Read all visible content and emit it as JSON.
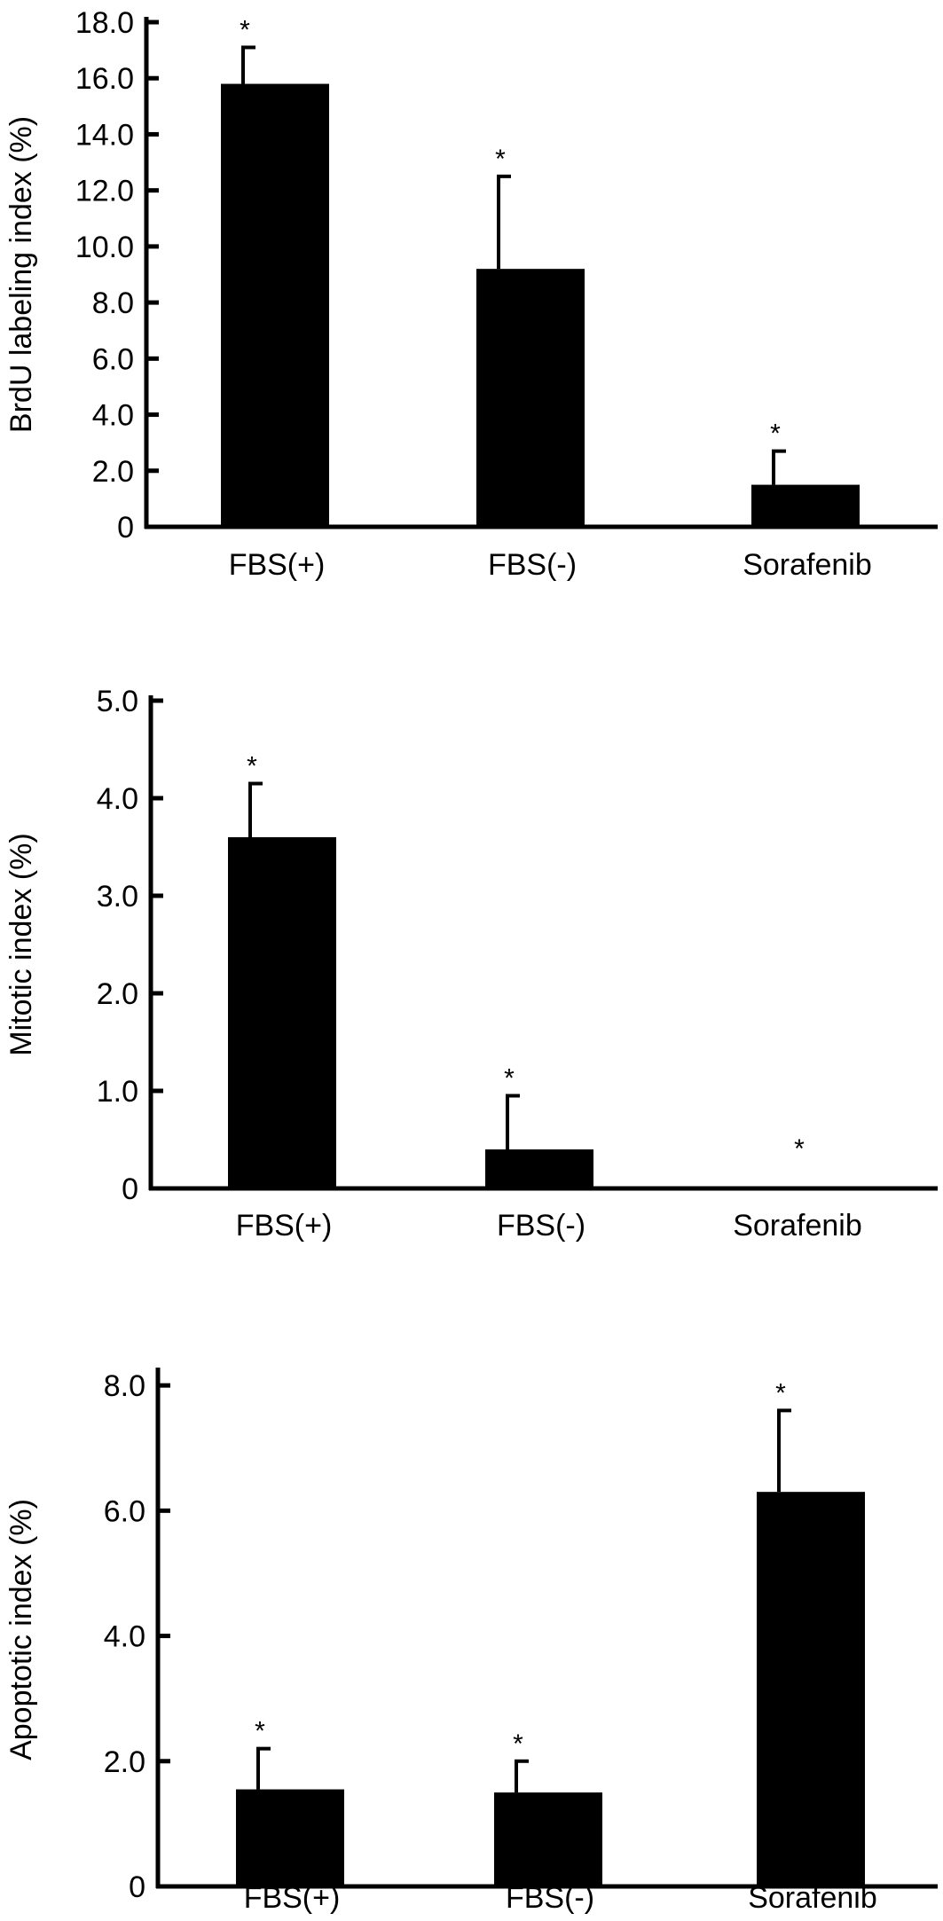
{
  "chart_data": [
    {
      "type": "bar",
      "ylabel": "BrdU labeling index (%)",
      "categories": [
        "FBS(+)",
        "FBS(-)",
        "Sorafenib"
      ],
      "values": [
        15.8,
        9.2,
        1.5
      ],
      "errors": [
        1.3,
        3.3,
        1.2
      ],
      "significance": [
        "*",
        "*",
        "*"
      ],
      "yticks": [
        {
          "value": 0,
          "label": "0"
        },
        {
          "value": 2,
          "label": "2.0"
        },
        {
          "value": 4,
          "label": "4.0"
        },
        {
          "value": 6,
          "label": "6.0"
        },
        {
          "value": 8,
          "label": "8.0"
        },
        {
          "value": 10,
          "label": "10.0"
        },
        {
          "value": 12,
          "label": "12.0"
        },
        {
          "value": 14,
          "label": "14.0"
        },
        {
          "value": 16,
          "label": "16.0"
        },
        {
          "value": 18,
          "label": "18.0"
        }
      ],
      "ylim": [
        0,
        18
      ],
      "grid": false,
      "bar_color": "#000000"
    },
    {
      "type": "bar",
      "ylabel": "Mitotic index (%)",
      "categories": [
        "FBS(+)",
        "FBS(-)",
        "Sorafenib"
      ],
      "values": [
        3.6,
        0.4,
        0
      ],
      "errors": [
        0.55,
        0.55,
        0
      ],
      "significance": [
        "*",
        "*",
        "*"
      ],
      "yticks": [
        {
          "value": 0,
          "label": "0"
        },
        {
          "value": 1,
          "label": "1.0"
        },
        {
          "value": 2,
          "label": "2.0"
        },
        {
          "value": 3,
          "label": "3.0"
        },
        {
          "value": 4,
          "label": "4.0"
        },
        {
          "value": 5,
          "label": "5.0"
        }
      ],
      "ylim": [
        0,
        5
      ],
      "grid": false,
      "bar_color": "#000000"
    },
    {
      "type": "bar",
      "ylabel": "Apoptotic index (%)",
      "categories": [
        "FBS(+)",
        "FBS(-)",
        "Sorafenib"
      ],
      "values": [
        1.55,
        1.5,
        6.3
      ],
      "errors": [
        0.65,
        0.5,
        1.3
      ],
      "significance": [
        "*",
        "*",
        "*"
      ],
      "yticks": [
        {
          "value": 0,
          "label": "0"
        },
        {
          "value": 2,
          "label": "2.0"
        },
        {
          "value": 4,
          "label": "4.0"
        },
        {
          "value": 6,
          "label": "6.0"
        },
        {
          "value": 8,
          "label": "8.0"
        }
      ],
      "ylim": [
        0,
        8.2
      ],
      "grid": false,
      "bar_color": "#000000"
    }
  ]
}
